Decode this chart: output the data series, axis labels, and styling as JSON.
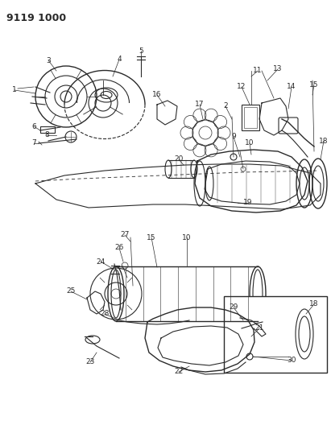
{
  "title": "9119 1000",
  "bg_color": "#ffffff",
  "fig_width": 4.11,
  "fig_height": 5.33,
  "dpi": 100,
  "line_color": "#2a2a2a",
  "gray_color": "#888888",
  "light_gray": "#cccccc"
}
